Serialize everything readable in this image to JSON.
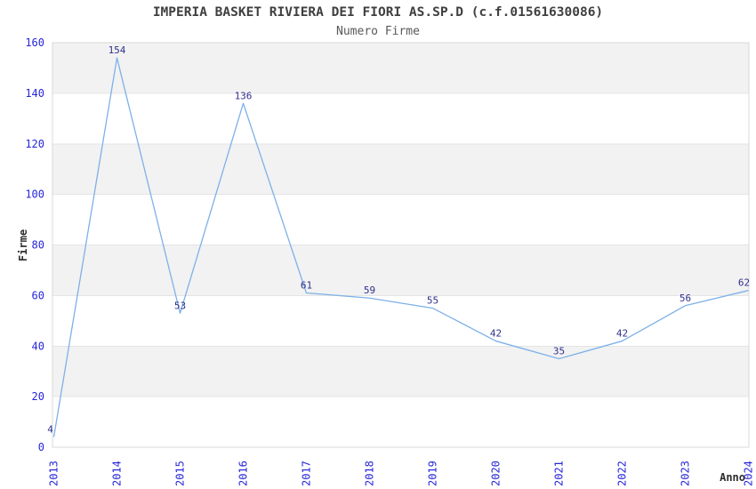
{
  "chart_data": {
    "type": "line",
    "title": "IMPERIA BASKET RIVIERA DEI FIORI AS.SP.D (c.f.01561630086)",
    "subtitle": "Numero Firme",
    "xlabel": "Anno",
    "ylabel": "Firme",
    "categories": [
      "2013",
      "2014",
      "2015",
      "2016",
      "2017",
      "2018",
      "2019",
      "2020",
      "2021",
      "2022",
      "2023",
      "2024"
    ],
    "series": [
      {
        "name": "Numero Firme",
        "values": [
          4,
          154,
          53,
          136,
          61,
          59,
          55,
          42,
          35,
          42,
          56,
          62
        ]
      }
    ],
    "ylim": [
      0,
      160
    ],
    "ytick_step": 20,
    "yticks": [
      0,
      20,
      40,
      60,
      80,
      100,
      120,
      140,
      160
    ],
    "grid": "horizontal-bands-alternating",
    "legend": "none",
    "point_labels_shown": true,
    "x_tick_rotation_degrees": -90,
    "colors": {
      "line": "#7db1e8",
      "tick_label": "#2626d9",
      "point_label": "#30308e",
      "band": "#f2f2f2",
      "gridline": "#e4e4e4",
      "plot_border": "#d8d8d8",
      "title": "#3f3f3f",
      "subtitle": "#595959",
      "axis_label": "#2d2d2d",
      "background": "#ffffff"
    }
  }
}
